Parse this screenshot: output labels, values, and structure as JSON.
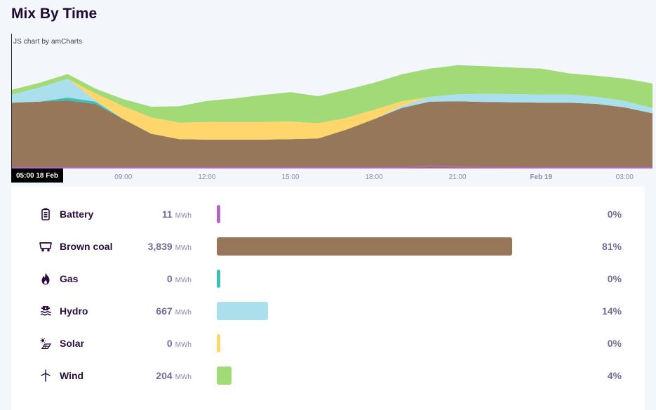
{
  "title": "Mix By Time",
  "credit": "JS chart by amCharts",
  "cursor_label": "05:00 18 Feb",
  "colors": {
    "battery": "#b565c8",
    "brown_coal": "#967759",
    "gas": "#3cbfb6",
    "hydro": "#aadfee",
    "solar": "#fed66b",
    "wind": "#a2da78"
  },
  "chart_data": {
    "type": "area",
    "stacked": true,
    "title": "Mix By Time",
    "x_ticks": [
      {
        "label": "09:00",
        "x": 4.0
      },
      {
        "label": "12:00",
        "x": 7.0
      },
      {
        "label": "15:00",
        "x": 10.0
      },
      {
        "label": "18:00",
        "x": 13.0
      },
      {
        "label": "21:00",
        "x": 16.0
      },
      {
        "label": "Feb 19",
        "x": 19.0,
        "bold": true
      },
      {
        "label": "03:00",
        "x": 22.0
      }
    ],
    "x": [
      0,
      1,
      2,
      3,
      4,
      5,
      6,
      7,
      8,
      9,
      10,
      11,
      12,
      13,
      14,
      15,
      16,
      17,
      18,
      19,
      20,
      21,
      22,
      23
    ],
    "xlim": [
      0,
      23
    ],
    "ylim": [
      0,
      580
    ],
    "series": [
      {
        "name": "Battery",
        "key": "battery",
        "values": [
          0,
          0,
          0,
          0,
          0,
          0,
          0,
          0,
          0,
          0,
          0,
          0,
          0,
          0,
          0,
          8,
          4,
          2,
          1,
          0,
          0,
          0,
          0,
          0
        ]
      },
      {
        "name": "Brown coal",
        "key": "brown_coal",
        "values": [
          280,
          285,
          290,
          275,
          210,
          148,
          125,
          123,
          123,
          123,
          125,
          128,
          165,
          210,
          258,
          285,
          286,
          283,
          282,
          280,
          280,
          275,
          260,
          235
        ]
      },
      {
        "name": "Gas",
        "key": "gas",
        "values": [
          0,
          0,
          12,
          10,
          0,
          0,
          0,
          0,
          0,
          0,
          0,
          0,
          0,
          0,
          0,
          0,
          0,
          0,
          0,
          0,
          0,
          0,
          0,
          0
        ]
      },
      {
        "name": "Hydro",
        "key": "hydro",
        "values": [
          35,
          60,
          80,
          5,
          0,
          0,
          0,
          0,
          0,
          0,
          0,
          0,
          0,
          0,
          8,
          20,
          30,
          35,
          35,
          35,
          35,
          30,
          28,
          22
        ]
      },
      {
        "name": "Solar",
        "key": "solar",
        "values": [
          0,
          0,
          0,
          30,
          55,
          70,
          70,
          75,
          75,
          75,
          75,
          65,
          50,
          40,
          20,
          0,
          0,
          0,
          0,
          0,
          0,
          0,
          0,
          0
        ]
      },
      {
        "name": "Wind",
        "key": "wind",
        "values": [
          20,
          20,
          20,
          20,
          30,
          45,
          70,
          90,
          100,
          115,
          125,
          115,
          120,
          115,
          115,
          120,
          124,
          118,
          113,
          110,
          90,
          90,
          95,
          105
        ]
      }
    ]
  },
  "mix": [
    {
      "key": "battery",
      "name": "Battery",
      "icon": "battery-icon",
      "value": "11",
      "unit": "MWh",
      "pct": "0%",
      "share": 0.003
    },
    {
      "key": "brown_coal",
      "name": "Brown coal",
      "icon": "coal-cart-icon",
      "value": "3,839",
      "unit": "MWh",
      "pct": "81%",
      "share": 0.81
    },
    {
      "key": "gas",
      "name": "Gas",
      "icon": "flame-icon",
      "value": "0",
      "unit": "MWh",
      "pct": "0%",
      "share": 0.0
    },
    {
      "key": "hydro",
      "name": "Hydro",
      "icon": "hydro-icon",
      "value": "667",
      "unit": "MWh",
      "pct": "14%",
      "share": 0.14
    },
    {
      "key": "solar",
      "name": "Solar",
      "icon": "solar-icon",
      "value": "0",
      "unit": "MWh",
      "pct": "0%",
      "share": 0.0
    },
    {
      "key": "wind",
      "name": "Wind",
      "icon": "wind-turbine-icon",
      "value": "204",
      "unit": "MWh",
      "pct": "4%",
      "share": 0.04
    }
  ]
}
